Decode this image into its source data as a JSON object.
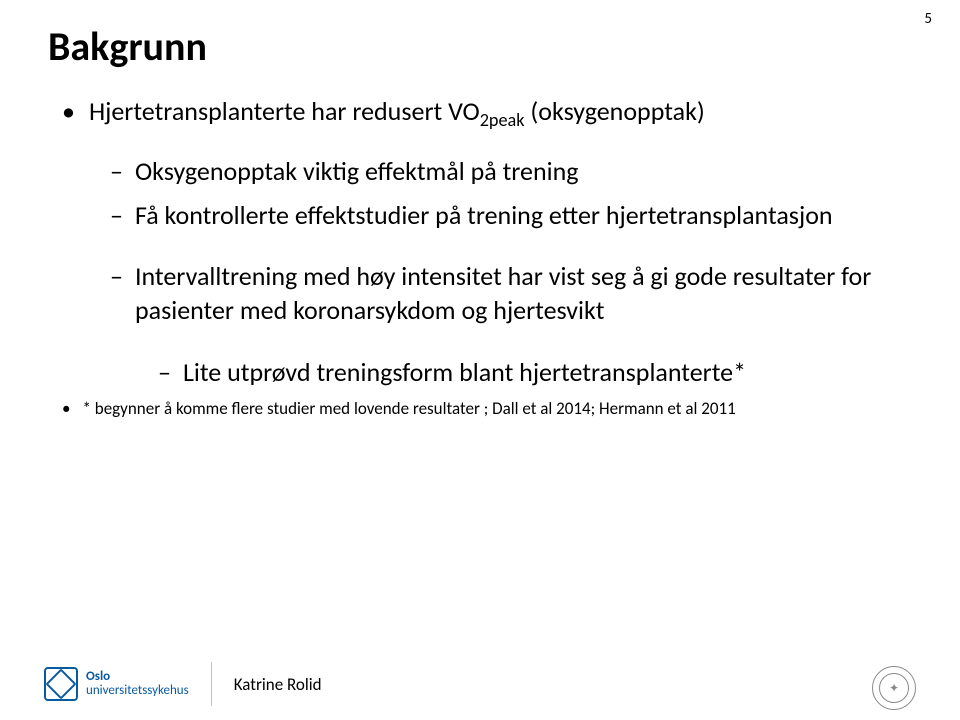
{
  "page_number": "5",
  "title": "Bakgrunn",
  "bullets": {
    "l1_pre": "Hjertetransplanterte har redusert VO",
    "l1_sub": "2peak",
    "l1_post": " (oksygenopptak)",
    "l2_a": "Oksygenopptak viktig effektmål på trening",
    "l2_b": "Få kontrollerte effektstudier på trening etter hjertetransplantasjon",
    "l2_c": "Intervalltrening med høy intensitet har vist seg å gi gode resultater for pasienter med koronarsykdom og hjertesvikt",
    "l3_a": "Lite utprøvd treningsform blant hjertetransplanterte*"
  },
  "footnote": "* begynner å komme flere studier med lovende resultater ; Dall et al 2014; Hermann et al 2011",
  "footer": {
    "logo_line1": "Oslo",
    "logo_line2": "universitetssykehus",
    "author": "Katrine Rolid"
  }
}
